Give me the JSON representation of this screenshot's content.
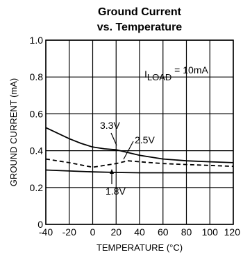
{
  "chart_data": {
    "type": "line",
    "title": "Ground Current",
    "subtitle": "vs. Temperature",
    "xlabel": "TEMPERATURE (°C)",
    "ylabel": "GROUND CURRENT (mA)",
    "xlim": [
      -40,
      120
    ],
    "ylim": [
      0,
      1.0
    ],
    "xticks": [
      "-40",
      "-20",
      "0",
      "20",
      "40",
      "60",
      "80",
      "100",
      "120"
    ],
    "yticks": [
      "0",
      "0.2",
      "0.4",
      "0.6",
      "0.8",
      "1.0"
    ],
    "grid": true,
    "annotation": {
      "prefix": "I",
      "subscript": "LOAD",
      "suffix": " = 10mA"
    },
    "series": [
      {
        "name": "3.3V",
        "style": "solid",
        "x": [
          -40,
          -30,
          -20,
          -10,
          0,
          10,
          20,
          30,
          40,
          60,
          80,
          100,
          120
        ],
        "y": [
          0.525,
          0.495,
          0.465,
          0.44,
          0.42,
          0.41,
          0.405,
          0.39,
          0.375,
          0.355,
          0.345,
          0.34,
          0.335
        ]
      },
      {
        "name": "2.5V",
        "style": "dashed",
        "x": [
          -40,
          -20,
          0,
          20,
          30,
          40,
          60,
          80,
          100,
          120
        ],
        "y": [
          0.355,
          0.335,
          0.31,
          0.33,
          0.345,
          0.34,
          0.33,
          0.325,
          0.32,
          0.315
        ]
      },
      {
        "name": "1.8V",
        "style": "solid",
        "x": [
          -40,
          -20,
          0,
          20,
          40,
          60,
          80,
          100,
          120
        ],
        "y": [
          0.295,
          0.29,
          0.285,
          0.282,
          0.28,
          0.28,
          0.28,
          0.28,
          0.28
        ]
      }
    ],
    "colors": {
      "line": "#000000",
      "grid": "#000000",
      "background": "#ffffff"
    }
  }
}
